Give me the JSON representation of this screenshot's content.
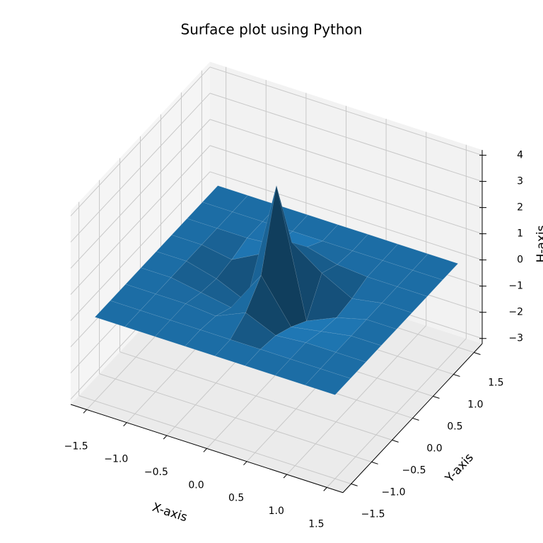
{
  "chart_data": {
    "type": "surface",
    "title": "Surface plot using Python",
    "xlabel": "X-axis",
    "ylabel": "Y-axis",
    "zlabel": "H-axis",
    "color": "#1f77b4",
    "grid": true,
    "xlim": [
      -1.7,
      1.7
    ],
    "ylim": [
      -1.7,
      1.7
    ],
    "zlim": [
      -3.2,
      4.2
    ],
    "xticks": [
      {
        "value": -1.5,
        "label": "−1.5"
      },
      {
        "value": -1.0,
        "label": "−1.0"
      },
      {
        "value": -0.5,
        "label": "−0.5"
      },
      {
        "value": 0,
        "label": "0.0"
      },
      0.5,
      {
        "value": 1.0,
        "label": "1.0"
      },
      1.5
    ],
    "yticks": [
      {
        "value": -1.5,
        "label": "−1.5"
      },
      {
        "value": -1.0,
        "label": "−1.0"
      },
      {
        "value": -0.5,
        "label": "−0.5"
      },
      {
        "value": 0,
        "label": "0.0"
      },
      0.5,
      {
        "value": 1.0,
        "label": "1.0"
      },
      1.5
    ],
    "zticks": [
      {
        "value": -3,
        "label": "−3"
      },
      {
        "value": -2,
        "label": "−2"
      },
      {
        "value": -1,
        "label": "−1"
      },
      0,
      1,
      2,
      3,
      4
    ],
    "x": [
      -1.5,
      -1.125,
      -0.75,
      -0.375,
      0,
      0.375,
      0.75,
      1.125,
      1.5
    ],
    "y": [
      -1.5,
      -1.125,
      -0.75,
      -0.375,
      0,
      0.375,
      0.75,
      1.125,
      1.5
    ],
    "z": [
      [
        0,
        0,
        0,
        0,
        0,
        0,
        0,
        0,
        0
      ],
      [
        0,
        0,
        0,
        0,
        0,
        0,
        0,
        0,
        0
      ],
      [
        0,
        0,
        0,
        -0.1,
        0.4,
        -0.1,
        0,
        0,
        0
      ],
      [
        0,
        0,
        -0.2,
        -0.4,
        1.2,
        -0.4,
        -0.2,
        0,
        0
      ],
      [
        0,
        0,
        -0.3,
        -0.8,
        4,
        -0.8,
        -0.3,
        0,
        0
      ],
      [
        0,
        0,
        -0.2,
        0.4,
        1.2,
        0.4,
        -0.2,
        0,
        0
      ],
      [
        0,
        0,
        0,
        0.1,
        0.4,
        0.1,
        0,
        0,
        0
      ],
      [
        0,
        0,
        0,
        0,
        0,
        0,
        0,
        0,
        0
      ],
      [
        0,
        0,
        0,
        0,
        0,
        0,
        0,
        0,
        0
      ]
    ]
  }
}
